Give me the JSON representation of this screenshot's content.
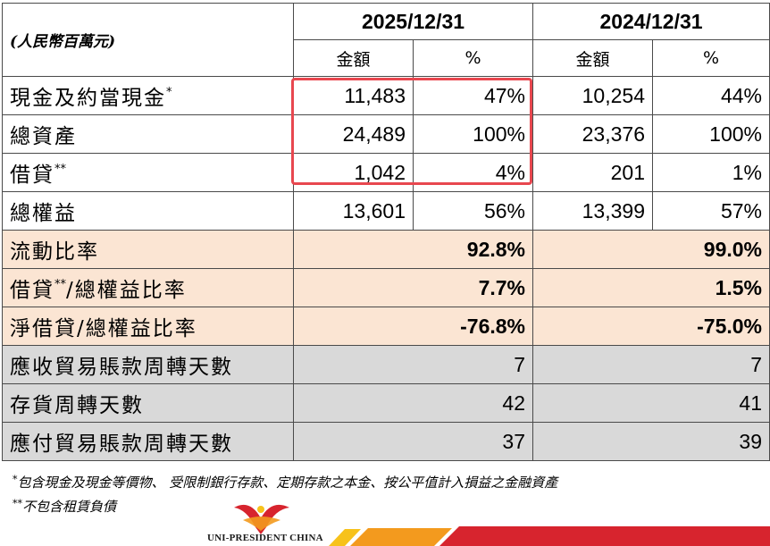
{
  "header": {
    "unit": "(人民幣百萬元)",
    "year1": "2025/12/31",
    "year2": "2024/12/31",
    "amount_label": "金額",
    "percent_label": "%"
  },
  "balance_rows": [
    {
      "label": "現金及約當現金",
      "mark": "*",
      "y1_amount": "11,483",
      "y1_pct": "47%",
      "y2_amount": "10,254",
      "y2_pct": "44%"
    },
    {
      "label": "總資產",
      "mark": "",
      "y1_amount": "24,489",
      "y1_pct": "100%",
      "y2_amount": "23,376",
      "y2_pct": "100%"
    },
    {
      "label": "借貸",
      "mark": "**",
      "y1_amount": "1,042",
      "y1_pct": "4%",
      "y2_amount": "201",
      "y2_pct": "1%"
    },
    {
      "label": "總權益",
      "mark": "",
      "y1_amount": "13,601",
      "y1_pct": "56%",
      "y2_amount": "13,399",
      "y2_pct": "57%"
    }
  ],
  "ratio_rows": [
    {
      "label": "流動比率",
      "mark": "",
      "suffix": "",
      "y1": "92.8%",
      "y2": "99.0%"
    },
    {
      "label": "借貸",
      "mark": "**",
      "suffix": "/總權益比率",
      "y1": "7.7%",
      "y2": "1.5%"
    },
    {
      "label": "淨借貸/總權益比率",
      "mark": "",
      "suffix": "",
      "y1": "-76.8%",
      "y2": "-75.0%"
    }
  ],
  "turnover_rows": [
    {
      "label": "應收貿易賬款周轉天數",
      "y1": "7",
      "y2": "7"
    },
    {
      "label": "存貨周轉天數",
      "y1": "42",
      "y2": "41"
    },
    {
      "label": "應付貿易賬款周轉天數",
      "y1": "37",
      "y2": "39"
    }
  ],
  "footnotes": [
    {
      "mark": "*",
      "text": "包含現金及現金等價物、 受限制銀行存款、定期存款之本金、按公平值計入損益之金融資產"
    },
    {
      "mark": "**",
      "text": "不包含租賃負債"
    }
  ],
  "brand": {
    "name": "UNI-PRESIDENT CHINA",
    "colors": {
      "red": "#d7242e",
      "orange": "#f39a1e",
      "yellow": "#f7c21b"
    }
  },
  "colors": {
    "highlight": "#e8474f",
    "ratio_bg": "#fbe5d3",
    "turnover_bg": "#d9d9d9"
  }
}
